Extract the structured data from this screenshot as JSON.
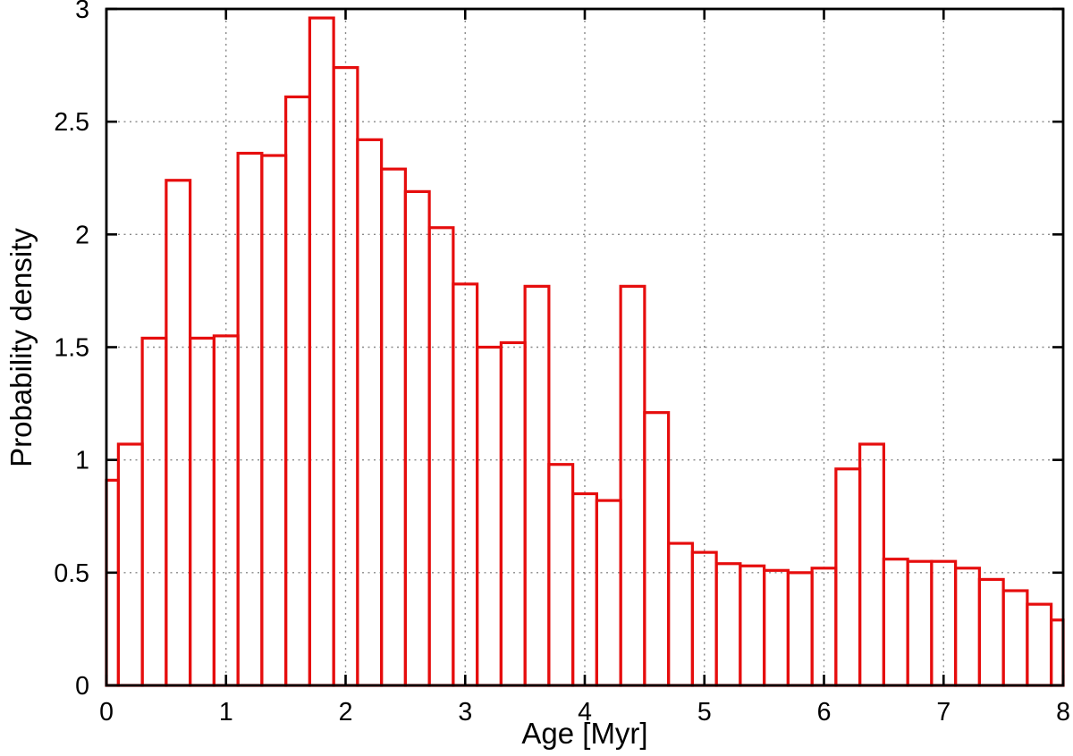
{
  "chart_data": {
    "type": "bar",
    "subtype": "histogram-outline",
    "title": "",
    "xlabel": "Age [Myr]",
    "ylabel": "Probability density",
    "xlim": [
      0,
      8
    ],
    "ylim": [
      0,
      3
    ],
    "x_ticks": [
      0,
      1,
      2,
      3,
      4,
      5,
      6,
      7,
      8
    ],
    "x_tick_labels": [
      "0",
      "1",
      "2",
      "3",
      "4",
      "5",
      "6",
      "7",
      "8"
    ],
    "y_ticks": [
      0,
      0.5,
      1,
      1.5,
      2,
      2.5,
      3
    ],
    "y_tick_labels": [
      "0",
      "0.5",
      "1",
      "1.5",
      "2",
      "2.5",
      "3"
    ],
    "grid": "dotted major gridlines, drawn behind unfilled bars",
    "legend_position": "none",
    "bar_fill": "none",
    "bar_color": "#e60d0d",
    "axis_color": "#000000",
    "grid_color": "#888888",
    "background_color": "#ffffff",
    "bin_edges": [
      0,
      0.1,
      0.3,
      0.5,
      0.7,
      0.9,
      1.1,
      1.3,
      1.5,
      1.7,
      1.9,
      2.1,
      2.3,
      2.5,
      2.7,
      2.9,
      3.1,
      3.3,
      3.5,
      3.7,
      3.9,
      4.1,
      4.3,
      4.5,
      4.7,
      4.9,
      5.1,
      5.3,
      5.5,
      5.7,
      5.9,
      6.1,
      6.3,
      6.5,
      6.7,
      6.9,
      7.1,
      7.3,
      7.5,
      7.7,
      7.9,
      8.0
    ],
    "values": [
      0.91,
      1.07,
      1.54,
      2.24,
      1.54,
      1.55,
      2.36,
      2.35,
      2.61,
      2.96,
      2.74,
      2.42,
      2.29,
      2.19,
      2.03,
      1.78,
      1.5,
      1.52,
      1.77,
      0.98,
      0.85,
      0.82,
      1.77,
      1.21,
      0.63,
      0.59,
      0.54,
      0.53,
      0.51,
      0.5,
      0.52,
      0.96,
      1.07,
      0.56,
      0.55,
      0.55,
      0.52,
      0.47,
      0.42,
      0.36,
      0.29
    ]
  }
}
